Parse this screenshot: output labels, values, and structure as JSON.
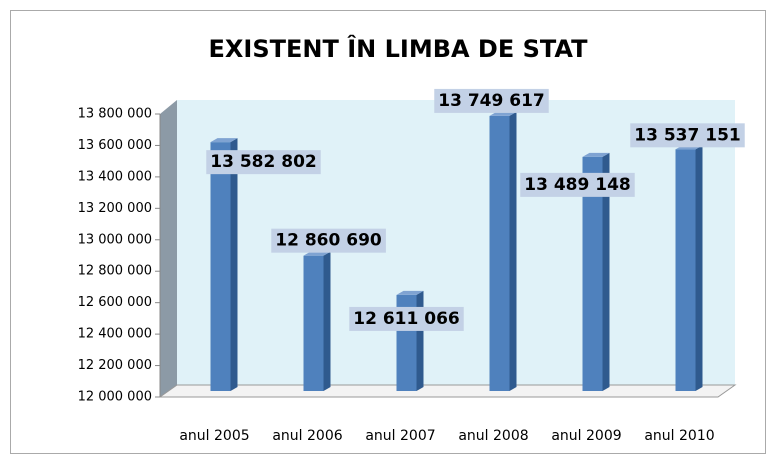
{
  "chart_data": {
    "type": "bar3d",
    "title": "EXISTENT ÎN LIMBA DE STAT",
    "categories": [
      "anul 2005",
      "anul 2006",
      "anul 2007",
      "anul 2008",
      "anul 2009",
      "anul 2010"
    ],
    "values": [
      13582802,
      12860690,
      12611066,
      13749617,
      13489148,
      13537151
    ],
    "value_labels": [
      "13 582 802",
      "12 860 690",
      "12 611 066",
      "13 749 617",
      "13 489 148",
      "13 537 151"
    ],
    "color": "#4f81bd",
    "ylim": [
      12000000,
      13800000
    ],
    "yticks": [
      {
        "value": 12000000,
        "label": "12 000 000"
      },
      {
        "value": 12200000,
        "label": "12 200 000"
      },
      {
        "value": 12400000,
        "label": "12 400 000"
      },
      {
        "value": 12600000,
        "label": "12 600 000"
      },
      {
        "value": 12800000,
        "label": "12 800 000"
      },
      {
        "value": 13000000,
        "label": "13 000 000"
      },
      {
        "value": 13200000,
        "label": "13 200 000"
      },
      {
        "value": 13400000,
        "label": "13 400 000"
      },
      {
        "value": 13600000,
        "label": "13 600 000"
      },
      {
        "value": 13800000,
        "label": "13 800 000"
      }
    ]
  }
}
